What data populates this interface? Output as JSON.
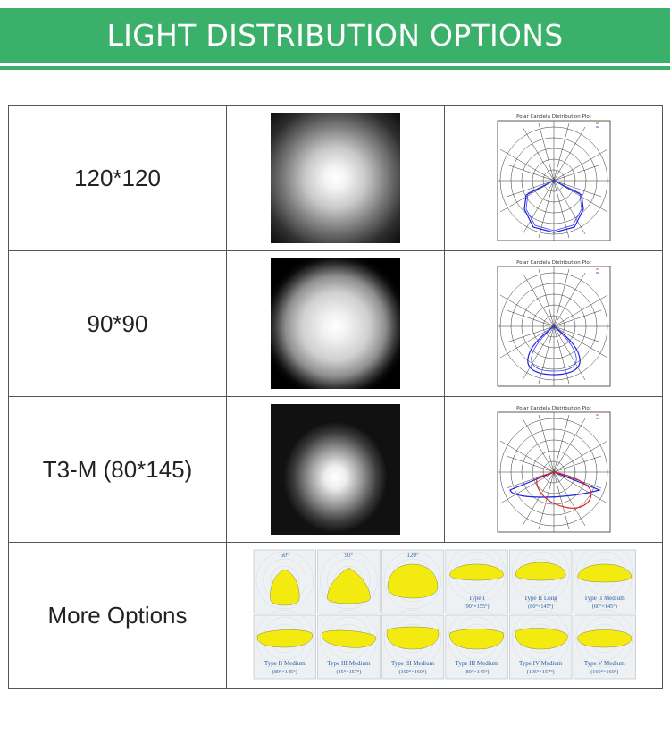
{
  "header": {
    "title": "LIGHT DISTRIBUTION OPTIONS",
    "color": "#3bb06b"
  },
  "rows": [
    {
      "label": "120*120",
      "beam": "beam-spot-wide",
      "plot_title": "Polar Candela Distribution Plot"
    },
    {
      "label": "90*90",
      "beam": "beam-spot-medium",
      "plot_title": "Polar Candela Distribution Plot"
    },
    {
      "label": "T3-M (80*145)",
      "beam": "beam-spot-asymmetric",
      "plot_title": "Polar Candela Distribution Plot"
    },
    {
      "label": "More Options"
    }
  ],
  "more_options": [
    {
      "heading": "60°",
      "caption": ""
    },
    {
      "heading": "90°",
      "caption": ""
    },
    {
      "heading": "120°",
      "caption": ""
    },
    {
      "heading": "Type I",
      "caption": "(90°×155°)"
    },
    {
      "heading": "Type II Long",
      "caption": "(80°×145°)"
    },
    {
      "heading": "Type II Medium",
      "caption": "(60°×145°)"
    },
    {
      "heading": "Type II Medium",
      "caption": "(80°×145°)"
    },
    {
      "heading": "Type III Medium",
      "caption": "(45°×157°)"
    },
    {
      "heading": "Type III Medium",
      "caption": "(100°×160°)"
    },
    {
      "heading": "Type III Medium",
      "caption": "(80°×145°)"
    },
    {
      "heading": "Type IV Medium",
      "caption": "(105°×157°)"
    },
    {
      "heading": "Type V Medium",
      "caption": "(160°×160°)"
    }
  ],
  "colors": {
    "curve_blue": "#2222dd",
    "curve_red": "#dd2222",
    "lobe_yellow": "#f3ea10"
  }
}
